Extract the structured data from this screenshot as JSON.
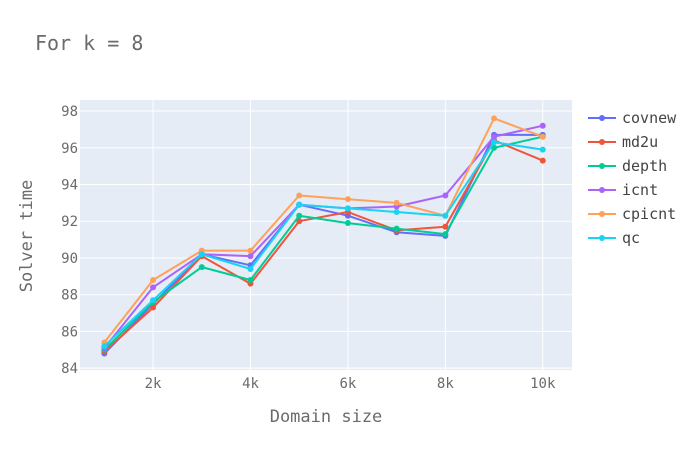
{
  "chart_data": {
    "type": "line",
    "title": "For k = 8",
    "xlabel": "Domain size",
    "ylabel": "Solver time",
    "x": [
      1000,
      2000,
      3000,
      4000,
      5000,
      6000,
      7000,
      8000,
      9000,
      10000
    ],
    "xticks": [
      2000,
      4000,
      6000,
      8000,
      10000
    ],
    "xtick_labels": [
      "2k",
      "4k",
      "6k",
      "8k",
      "10k"
    ],
    "xlim": [
      500,
      10600
    ],
    "yticks": [
      84,
      86,
      88,
      90,
      92,
      94,
      96,
      98
    ],
    "ylim": [
      83.9,
      98.6
    ],
    "grid": true,
    "legend_position": "right",
    "series": [
      {
        "name": "covnew",
        "color": "#636efa",
        "values": [
          84.8,
          87.5,
          90.2,
          89.6,
          92.9,
          92.3,
          91.4,
          91.2,
          96.7,
          96.7
        ]
      },
      {
        "name": "md2u",
        "color": "#ef553b",
        "values": [
          84.9,
          87.3,
          90.1,
          88.6,
          92.0,
          92.5,
          91.5,
          91.7,
          96.4,
          95.3
        ]
      },
      {
        "name": "depth",
        "color": "#00cc96",
        "values": [
          85.0,
          87.6,
          89.5,
          88.8,
          92.3,
          91.9,
          91.6,
          91.3,
          96.0,
          96.6
        ]
      },
      {
        "name": "icnt",
        "color": "#ab63fa",
        "values": [
          85.1,
          88.4,
          90.2,
          90.1,
          92.9,
          92.7,
          92.8,
          93.4,
          96.6,
          97.2
        ]
      },
      {
        "name": "cpicnt",
        "color": "#ffa15a",
        "values": [
          85.4,
          88.8,
          90.4,
          90.4,
          93.4,
          93.2,
          93.0,
          92.3,
          97.6,
          96.6
        ]
      },
      {
        "name": "qc",
        "color": "#19d3f3",
        "values": [
          85.2,
          87.7,
          90.2,
          89.4,
          92.9,
          92.7,
          92.5,
          92.3,
          96.3,
          95.9
        ]
      }
    ]
  }
}
